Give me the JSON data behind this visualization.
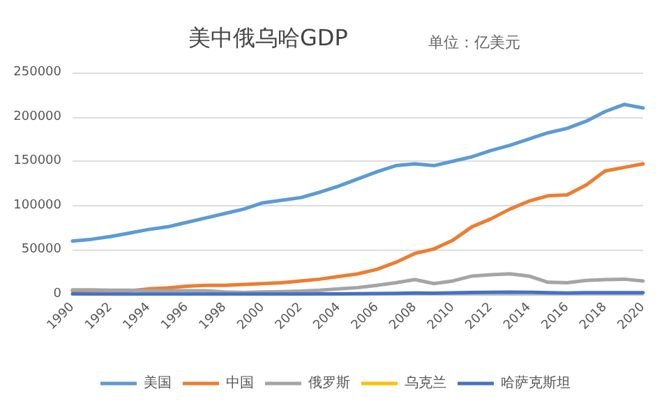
{
  "chart_data": {
    "type": "line",
    "title": "美中俄乌哈GDP",
    "subtitle": "单位：亿美元",
    "categories": [
      "1990",
      null,
      "1992",
      null,
      "1994",
      null,
      "1996",
      null,
      "1998",
      null,
      "2000",
      null,
      "2002",
      null,
      "2004",
      null,
      "2006",
      null,
      "2008",
      null,
      "2010",
      null,
      "2012",
      null,
      "2014",
      null,
      "2016",
      null,
      "2018",
      null,
      "2020"
    ],
    "series": [
      {
        "name": "美国",
        "color": "#5b9bd5",
        "values": [
          60000,
          62000,
          65000,
          69000,
          73000,
          76000,
          81000,
          86000,
          91000,
          96000,
          103000,
          106000,
          109000,
          115000,
          122000,
          130000,
          138000,
          145000,
          147000,
          145000,
          150000,
          155000,
          162000,
          168000,
          175000,
          182000,
          187000,
          195000,
          206000,
          214000,
          210000
        ]
      },
      {
        "name": "中国",
        "color": "#ed7d31",
        "values": [
          4000,
          4000,
          4000,
          4000,
          6000,
          7000,
          9000,
          10000,
          10000,
          11000,
          12000,
          13000,
          15000,
          17000,
          20000,
          23000,
          28000,
          36000,
          46000,
          51000,
          61000,
          76000,
          85000,
          96000,
          105000,
          111000,
          112000,
          123000,
          139000,
          143000,
          147000
        ]
      },
      {
        "name": "俄罗斯",
        "color": "#a5a5a5",
        "values": [
          5000,
          5000,
          4500,
          4500,
          4000,
          4000,
          4000,
          4000,
          2500,
          2000,
          2500,
          3000,
          3500,
          4500,
          6000,
          7500,
          10000,
          13000,
          16500,
          12000,
          15000,
          20500,
          22000,
          23000,
          20500,
          13500,
          13000,
          15500,
          16500,
          17000,
          15000
        ]
      },
      {
        "name": "乌克兰",
        "color": "#ffc000",
        "values": [
          null,
          null,
          null,
          null,
          null,
          null,
          null,
          null,
          null,
          null,
          null,
          null,
          null,
          null,
          null,
          null,
          null,
          null,
          null,
          null,
          null,
          null,
          null,
          null,
          null,
          null,
          null,
          null,
          null,
          null,
          null
        ]
      },
      {
        "name": "哈萨克斯坦",
        "color": "#4472c4",
        "values": [
          300,
          200,
          200,
          200,
          200,
          200,
          200,
          200,
          200,
          200,
          200,
          200,
          200,
          300,
          400,
          600,
          800,
          1000,
          1300,
          1200,
          1500,
          1900,
          2100,
          2400,
          2200,
          1800,
          1400,
          1700,
          1800,
          1800,
          1700
        ]
      }
    ],
    "ylim": [
      0,
      250000
    ],
    "yticks": [
      0,
      50000,
      100000,
      150000,
      200000,
      250000
    ],
    "grid": "y",
    "legend": "bottom",
    "marker": "none",
    "line_style": "solid"
  }
}
